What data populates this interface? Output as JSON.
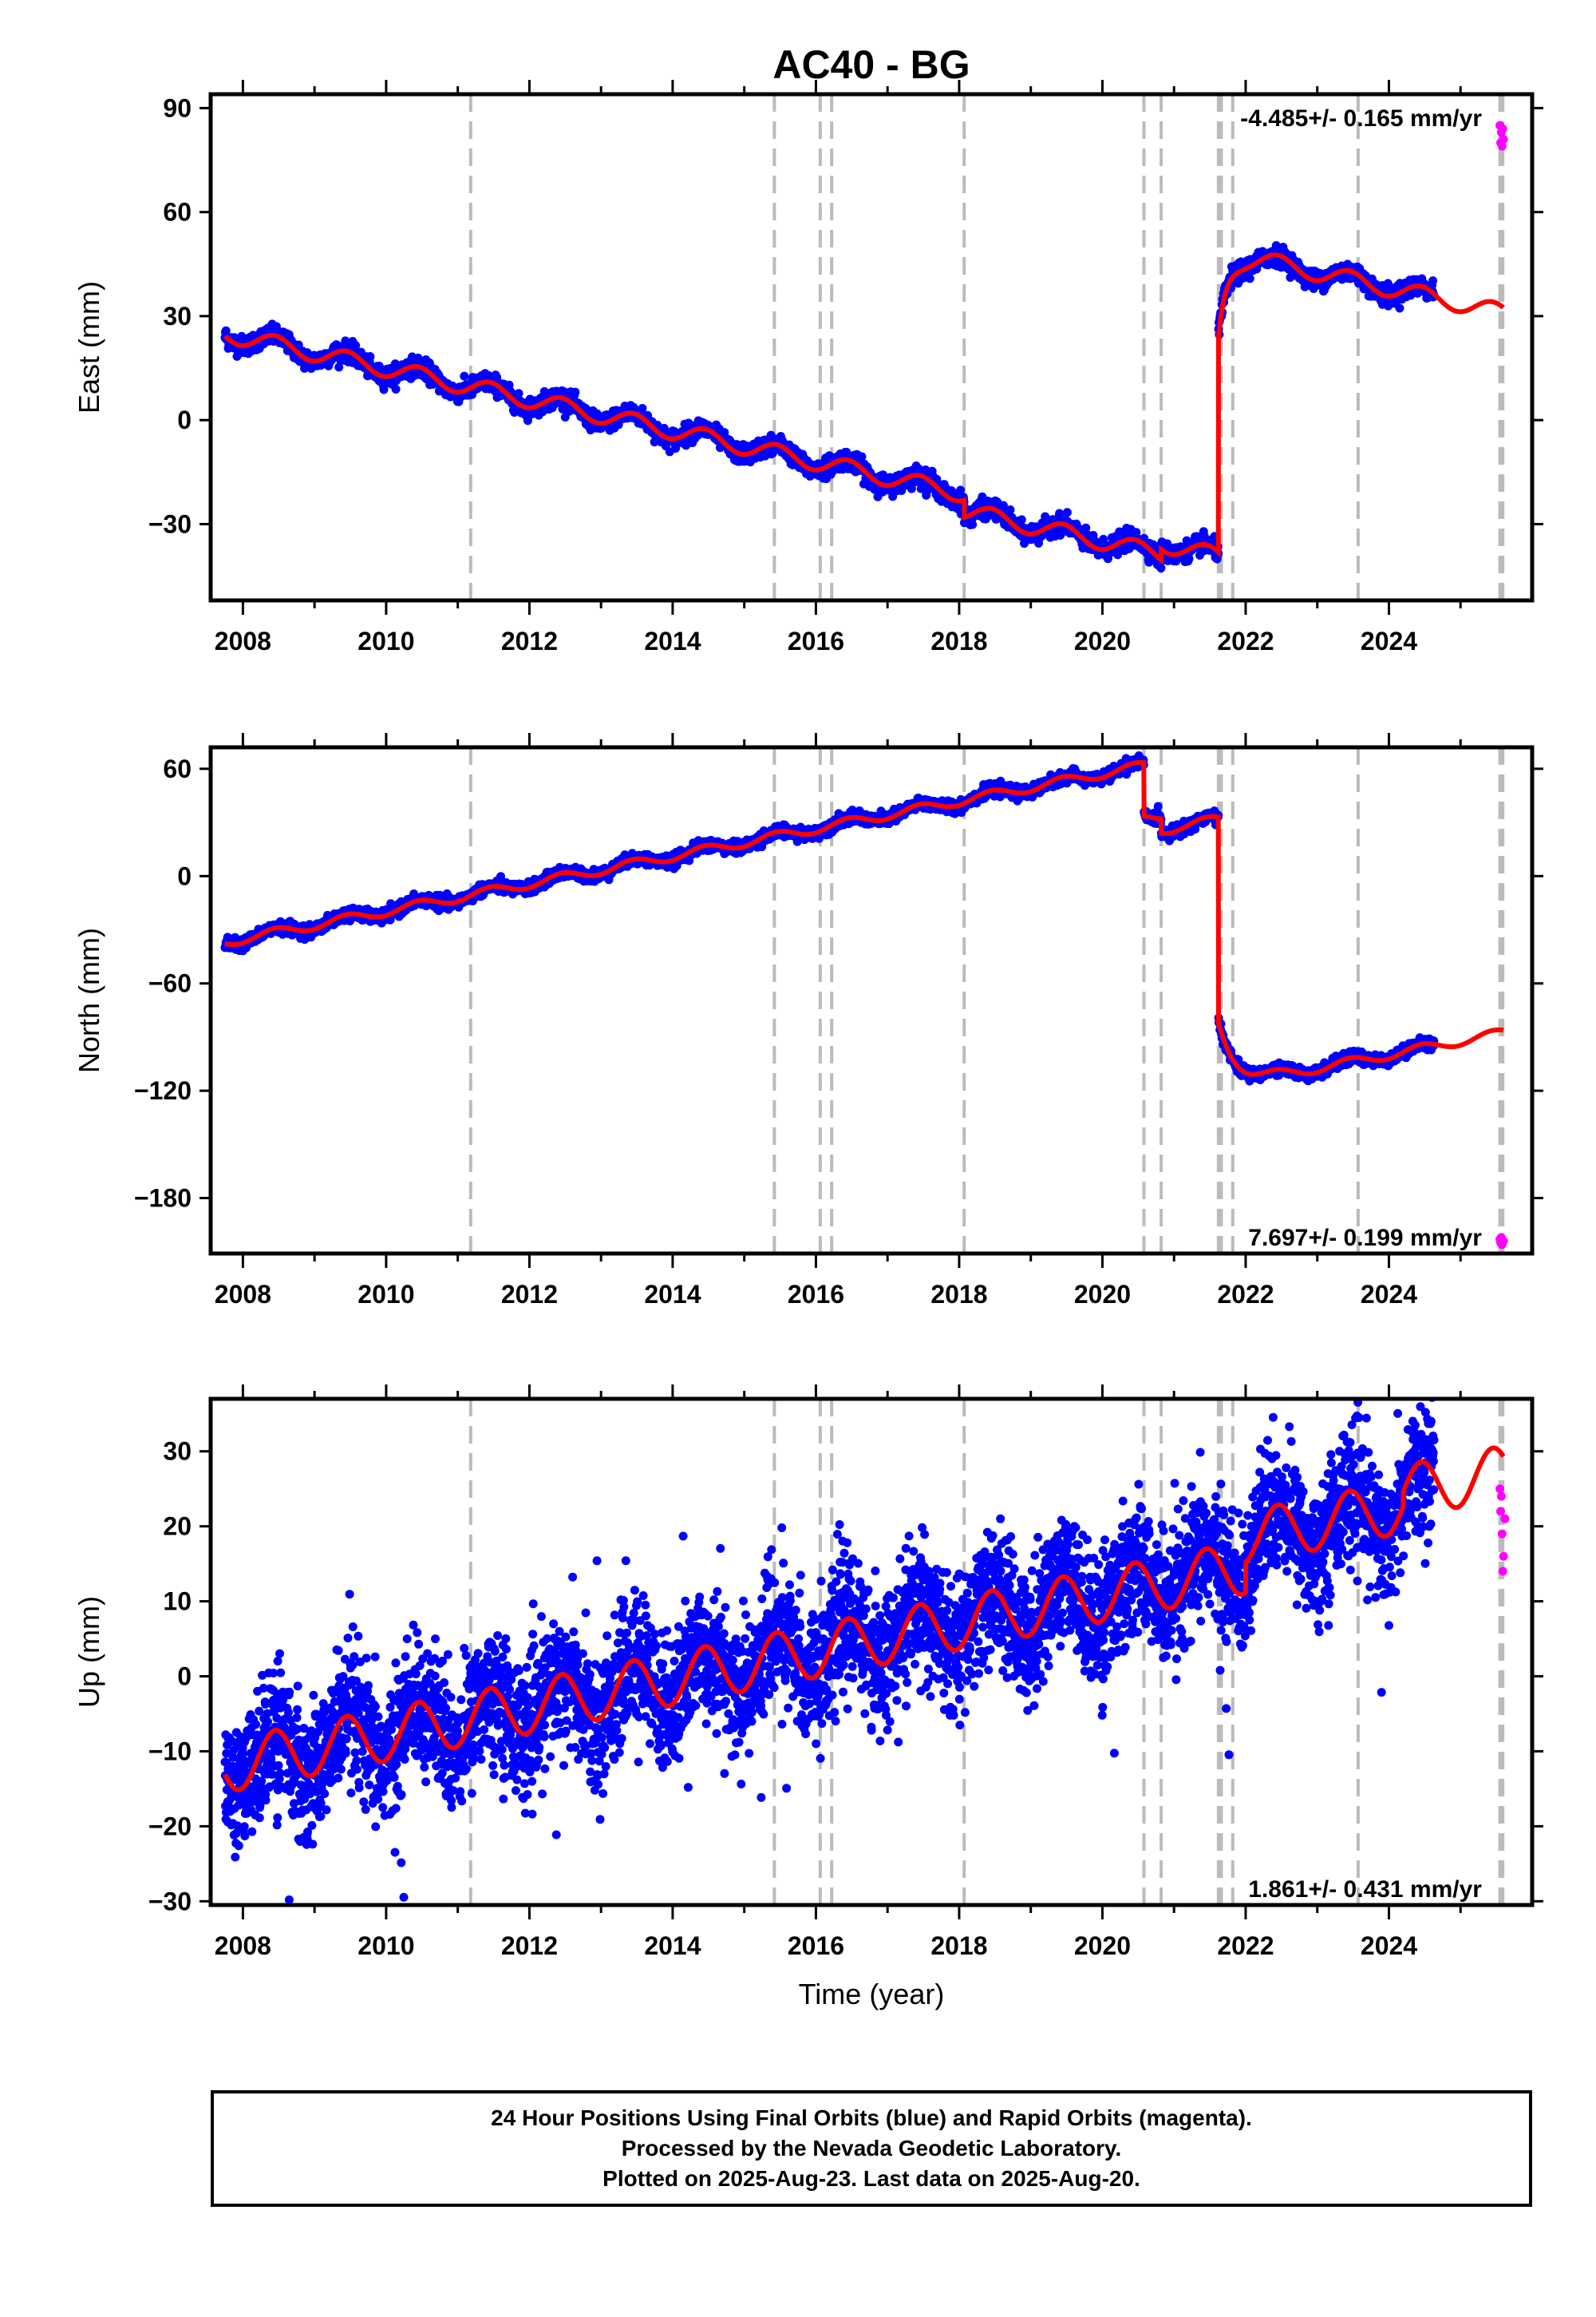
{
  "title": "AC40 - BG",
  "footer": {
    "line1": "24 Hour Positions Using Final Orbits (blue) and Rapid Orbits (magenta).",
    "line2": "Processed by the Nevada Geodetic Laboratory.",
    "line3": "Plotted on 2025-Aug-23. Last data on 2025-Aug-20."
  },
  "colors": {
    "final_orbits": "#0000ff",
    "rapid_orbits": "#ff00ff",
    "model": "#ff0000",
    "event_lines": "#bbbbbb"
  },
  "chart_data": [
    {
      "type": "scatter",
      "name": "East",
      "ylabel": "East (mm)",
      "xlabel": "",
      "xlim": [
        2007.55,
        2026.0
      ],
      "ylim": [
        -52,
        94
      ],
      "yticks": [
        -30,
        0,
        30,
        60,
        90
      ],
      "xticks": [
        2008,
        2010,
        2012,
        2014,
        2016,
        2018,
        2020,
        2022,
        2024
      ],
      "rate_text": "-4.485+/- 0.165 mm/yr",
      "event_years": [
        2011.18,
        2015.42,
        2016.06,
        2016.22,
        2018.07,
        2020.58,
        2020.82,
        2021.62,
        2021.66,
        2021.82,
        2023.57,
        2025.55,
        2025.59
      ],
      "model": {
        "start_year": 2007.75,
        "start_value": 25.0,
        "rate": -4.485,
        "season_amp": 2.5,
        "offsets": [
          [
            2018.07,
            -5
          ],
          [
            2020.82,
            3
          ],
          [
            2021.62,
            88
          ]
        ],
        "post_event": {
          "year": 2021.62,
          "amp": -26,
          "tau": 0.12
        }
      },
      "noise": 1.3,
      "rapid_points": [
        [
          2025.55,
          85
        ],
        [
          2025.56,
          80
        ],
        [
          2025.57,
          83
        ],
        [
          2025.58,
          79
        ],
        [
          2025.59,
          84
        ],
        [
          2025.6,
          81
        ]
      ]
    },
    {
      "type": "scatter",
      "name": "North",
      "ylabel": "North (mm)",
      "xlabel": "",
      "xlim": [
        2007.55,
        2026.0
      ],
      "ylim": [
        -211,
        72
      ],
      "yticks": [
        -180,
        -120,
        -60,
        0,
        60
      ],
      "xticks": [
        2008,
        2010,
        2012,
        2014,
        2016,
        2018,
        2020,
        2022,
        2024
      ],
      "rate_text": "7.697+/- 0.199 mm/yr",
      "event_years": [
        2011.18,
        2015.42,
        2016.06,
        2016.22,
        2018.07,
        2020.58,
        2020.82,
        2021.62,
        2021.66,
        2021.82,
        2023.57,
        2025.55,
        2025.59
      ],
      "model": {
        "start_year": 2007.75,
        "start_value": -37.0,
        "rate": 7.697,
        "season_amp": 2.5,
        "offsets": [
          [
            2020.58,
            -30
          ],
          [
            2020.82,
            -8
          ],
          [
            2021.62,
            -150
          ]
        ],
        "post_event": {
          "year": 2021.62,
          "amp": 35,
          "tau": 0.25
        }
      },
      "noise": 1.6,
      "rapid_points": [
        [
          2025.55,
          -203
        ],
        [
          2025.56,
          -205
        ],
        [
          2025.57,
          -202
        ],
        [
          2025.58,
          -206
        ],
        [
          2025.6,
          -204
        ]
      ]
    },
    {
      "type": "scatter",
      "name": "Up",
      "ylabel": "Up (mm)",
      "xlabel": "Time (year)",
      "xlim": [
        2007.55,
        2026.0
      ],
      "ylim": [
        -30.5,
        37
      ],
      "yticks": [
        -30,
        -20,
        -10,
        0,
        10,
        20,
        30
      ],
      "xticks": [
        2008,
        2010,
        2012,
        2014,
        2016,
        2018,
        2020,
        2022,
        2024
      ],
      "rate_text": "1.861+/- 0.431 mm/yr",
      "event_years": [
        2011.18,
        2015.42,
        2016.06,
        2016.22,
        2018.07,
        2020.58,
        2020.82,
        2021.62,
        2021.66,
        2021.82,
        2023.57,
        2025.55,
        2025.59
      ],
      "model": {
        "start_year": 2007.75,
        "start_value": -12.0,
        "rate": 1.861,
        "season_amp": 3.5,
        "offsets": [
          [
            2022.0,
            4
          ],
          [
            2024.2,
            2
          ]
        ],
        "post_event": null
      },
      "noise": 4.3,
      "rapid_points": [
        [
          2025.55,
          25
        ],
        [
          2025.56,
          22
        ],
        [
          2025.57,
          24
        ],
        [
          2025.58,
          19
        ],
        [
          2025.59,
          14
        ],
        [
          2025.6,
          16
        ],
        [
          2025.62,
          21
        ]
      ]
    }
  ]
}
